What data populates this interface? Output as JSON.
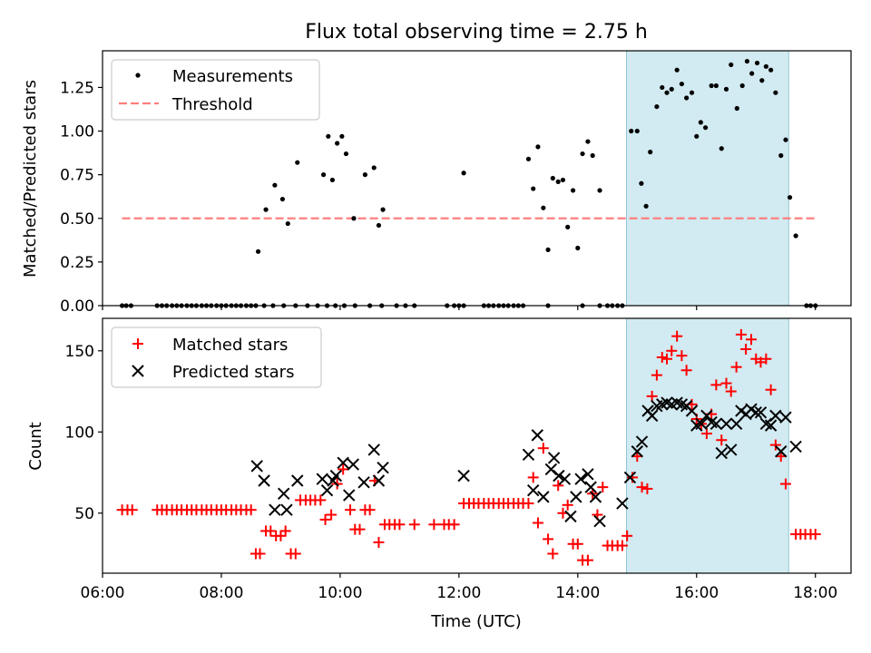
{
  "chart_data": {
    "title": "Flux total observing time = 2.75 h",
    "xlabel": "Time (UTC)",
    "xlim": [
      6.0,
      18.6
    ],
    "x_ticks": [
      6,
      8,
      10,
      12,
      14,
      16,
      18
    ],
    "x_tick_labels": [
      "06:00",
      "08:00",
      "10:00",
      "12:00",
      "14:00",
      "16:00",
      "18:00"
    ],
    "shaded_region": {
      "x_start": 14.82,
      "x_end": 17.55,
      "color": "#add8e6"
    },
    "panels": [
      {
        "type": "scatter",
        "ylabel": "Matched/Predicted stars",
        "ylim": [
          0,
          1.46
        ],
        "y_ticks": [
          0,
          0.25,
          0.5,
          0.75,
          1.0,
          1.25
        ],
        "y_tick_labels": [
          "0.00",
          "0.25",
          "0.50",
          "0.75",
          "1.00",
          "1.25"
        ],
        "legend_position": "upper-left",
        "threshold": {
          "name": "Threshold",
          "y": 0.5,
          "x_range": [
            6.33,
            18.0
          ],
          "color": "#ff7f7f",
          "style": "dashed"
        },
        "series": [
          {
            "name": "Measurements",
            "marker": "dot",
            "color": "#000000",
            "x": [
              6.33,
              6.4,
              6.48,
              6.92,
              7.0,
              7.08,
              7.17,
              7.25,
              7.33,
              7.42,
              7.5,
              7.58,
              7.67,
              7.75,
              7.83,
              7.92,
              8.0,
              8.08,
              8.17,
              8.25,
              8.33,
              8.42,
              8.5,
              8.58,
              8.72,
              8.87,
              9.05,
              9.25,
              9.45,
              9.62,
              9.78,
              9.92,
              10.07,
              10.25,
              10.5,
              10.7,
              10.95,
              11.1,
              11.25,
              8.62,
              8.75,
              8.9,
              9.03,
              9.12,
              9.28,
              9.72,
              9.8,
              9.87,
              9.95,
              10.03,
              10.1,
              10.23,
              10.42,
              10.57,
              10.65,
              10.72,
              11.8,
              11.92,
              12.0,
              12.08,
              12.42,
              12.5,
              12.58,
              12.67,
              12.75,
              12.83,
              12.92,
              13.0,
              13.08,
              13.5,
              12.08,
              13.17,
              13.25,
              13.33,
              13.42,
              13.5,
              13.58,
              13.67,
              13.75,
              13.83,
              13.92,
              14.0,
              14.08,
              14.17,
              14.25,
              14.37,
              14.08,
              14.37,
              14.5,
              14.58,
              14.67,
              14.75,
              14.9,
              15.0,
              15.07,
              15.15,
              15.22,
              15.33,
              15.42,
              15.5,
              15.58,
              15.67,
              15.75,
              15.83,
              15.92,
              16.0,
              16.07,
              16.15,
              16.25,
              16.33,
              16.42,
              16.5,
              16.58,
              16.68,
              16.77,
              16.85,
              16.93,
              17.02,
              17.1,
              17.17,
              17.25,
              17.33,
              17.42,
              17.5,
              17.57,
              17.67,
              17.85,
              17.92,
              18.0
            ],
            "y": [
              0,
              0,
              0,
              0,
              0,
              0,
              0,
              0,
              0,
              0,
              0,
              0,
              0,
              0,
              0,
              0,
              0,
              0,
              0,
              0,
              0,
              0,
              0,
              0,
              0,
              0,
              0,
              0,
              0,
              0,
              0,
              0,
              0,
              0,
              0,
              0,
              0,
              0,
              0,
              0.31,
              0.55,
              0.69,
              0.61,
              0.47,
              0.82,
              0.75,
              0.97,
              0.72,
              0.93,
              0.97,
              0.87,
              0.5,
              0.75,
              0.79,
              0.46,
              0.55,
              0,
              0,
              0,
              0,
              0,
              0,
              0,
              0,
              0,
              0,
              0,
              0,
              0,
              0,
              0.76,
              0.84,
              0.67,
              0.91,
              0.56,
              0.32,
              0.73,
              0.71,
              0.72,
              0.45,
              0.66,
              0.33,
              0.87,
              0.94,
              0.86,
              0.66,
              0,
              0,
              0,
              0,
              0,
              0,
              1.0,
              1.0,
              0.7,
              0.57,
              0.88,
              1.14,
              1.25,
              1.22,
              1.24,
              1.35,
              1.27,
              1.19,
              1.22,
              0.97,
              1.05,
              1.02,
              1.26,
              1.26,
              0.9,
              1.24,
              1.38,
              1.13,
              1.26,
              1.4,
              1.33,
              1.39,
              1.29,
              1.37,
              1.35,
              1.22,
              0.86,
              0.95,
              0.62,
              0.4,
              0,
              0,
              0
            ]
          }
        ]
      },
      {
        "type": "scatter",
        "ylabel": "Count",
        "ylim": [
          13,
          170
        ],
        "y_ticks": [
          50,
          100,
          150
        ],
        "y_tick_labels": [
          "50",
          "100",
          "150"
        ],
        "legend_position": "upper-left",
        "series": [
          {
            "name": "Matched stars",
            "marker": "plus",
            "color": "#ff0000",
            "x": [
              6.33,
              6.42,
              6.5,
              6.92,
              7.0,
              7.08,
              7.17,
              7.25,
              7.33,
              7.42,
              7.5,
              7.58,
              7.67,
              7.75,
              7.83,
              7.92,
              8.0,
              8.08,
              8.17,
              8.25,
              8.33,
              8.42,
              8.5,
              8.58,
              8.65,
              8.75,
              8.83,
              8.92,
              9.0,
              9.08,
              9.17,
              9.25,
              9.33,
              9.42,
              9.5,
              9.58,
              9.67,
              9.75,
              9.85,
              9.95,
              10.05,
              10.17,
              10.25,
              10.33,
              10.42,
              10.5,
              10.58,
              10.65,
              10.75,
              10.83,
              10.92,
              11.0,
              11.25,
              11.58,
              11.75,
              11.83,
              11.92,
              12.08,
              12.17,
              12.25,
              12.33,
              12.42,
              12.5,
              12.58,
              12.67,
              12.75,
              12.83,
              12.92,
              13.0,
              13.08,
              13.17,
              13.25,
              13.33,
              13.42,
              13.5,
              13.58,
              13.67,
              13.75,
              13.83,
              13.92,
              14.0,
              14.08,
              14.17,
              14.25,
              14.33,
              14.42,
              14.5,
              14.58,
              14.67,
              14.75,
              14.83,
              14.92,
              15.0,
              15.08,
              15.17,
              15.25,
              15.33,
              15.42,
              15.5,
              15.58,
              15.67,
              15.75,
              15.83,
              15.92,
              16.0,
              16.08,
              16.17,
              16.25,
              16.33,
              16.42,
              16.5,
              16.58,
              16.67,
              16.75,
              16.83,
              16.92,
              17.0,
              17.08,
              17.17,
              17.25,
              17.33,
              17.42,
              17.5,
              17.67,
              17.75,
              17.83,
              17.92,
              18.0
            ],
            "y": [
              52,
              52,
              52,
              52,
              52,
              52,
              52,
              52,
              52,
              52,
              52,
              52,
              52,
              52,
              52,
              52,
              52,
              52,
              52,
              52,
              52,
              52,
              52,
              25,
              25,
              39,
              39,
              36,
              36,
              39,
              25,
              25,
              58,
              58,
              58,
              58,
              58,
              46,
              49,
              68,
              77,
              52,
              40,
              40,
              52,
              52,
              70,
              32,
              43,
              43,
              43,
              43,
              43,
              43,
              43,
              43,
              43,
              56,
              56,
              56,
              56,
              56,
              56,
              56,
              56,
              56,
              56,
              56,
              56,
              56,
              56,
              72,
              44,
              90,
              34,
              25,
              67,
              50,
              55,
              31,
              31,
              21,
              21,
              62,
              49,
              66,
              30,
              30,
              30,
              30,
              36,
              72,
              85,
              66,
              65,
              122,
              135,
              146,
              145,
              150,
              159,
              147,
              138,
              117,
              108,
              105,
              99,
              111,
              129,
              95,
              130,
              125,
              140,
              160,
              151,
              157,
              145,
              143,
              145,
              126,
              92,
              85,
              68,
              37,
              37,
              37,
              37,
              37
            ]
          },
          {
            "name": "Predicted stars",
            "marker": "x",
            "color": "#000000",
            "x": [
              8.6,
              8.72,
              8.9,
              9.05,
              9.1,
              9.28,
              9.7,
              9.78,
              9.88,
              9.93,
              10.05,
              10.15,
              10.22,
              10.4,
              10.57,
              10.65,
              10.72,
              12.08,
              13.17,
              13.25,
              13.32,
              13.42,
              13.55,
              13.6,
              13.68,
              13.78,
              13.88,
              13.97,
              14.05,
              14.17,
              14.22,
              14.3,
              14.37,
              14.75,
              14.88,
              15.0,
              15.08,
              15.18,
              15.25,
              15.33,
              15.42,
              15.5,
              15.58,
              15.67,
              15.75,
              15.83,
              15.92,
              16.0,
              16.08,
              16.17,
              16.25,
              16.33,
              16.42,
              16.5,
              16.58,
              16.67,
              16.75,
              16.83,
              16.92,
              17.0,
              17.08,
              17.17,
              17.25,
              17.33,
              17.42,
              17.5,
              17.67
            ],
            "y": [
              79,
              70,
              52,
              62,
              52,
              70,
              71,
              64,
              70,
              73,
              81,
              61,
              80,
              69,
              89,
              70,
              78,
              73,
              86,
              64,
              98,
              60,
              77,
              84,
              73,
              71,
              48,
              60,
              71,
              74,
              66,
              60,
              45,
              56,
              72,
              88,
              94,
              113,
              110,
              116,
              117,
              118,
              117,
              118,
              117,
              116,
              113,
              104,
              105,
              110,
              106,
              105,
              87,
              105,
              89,
              105,
              113,
              111,
              114,
              112,
              112,
              105,
              104,
              110,
              88,
              109,
              91
            ]
          }
        ]
      }
    ]
  }
}
